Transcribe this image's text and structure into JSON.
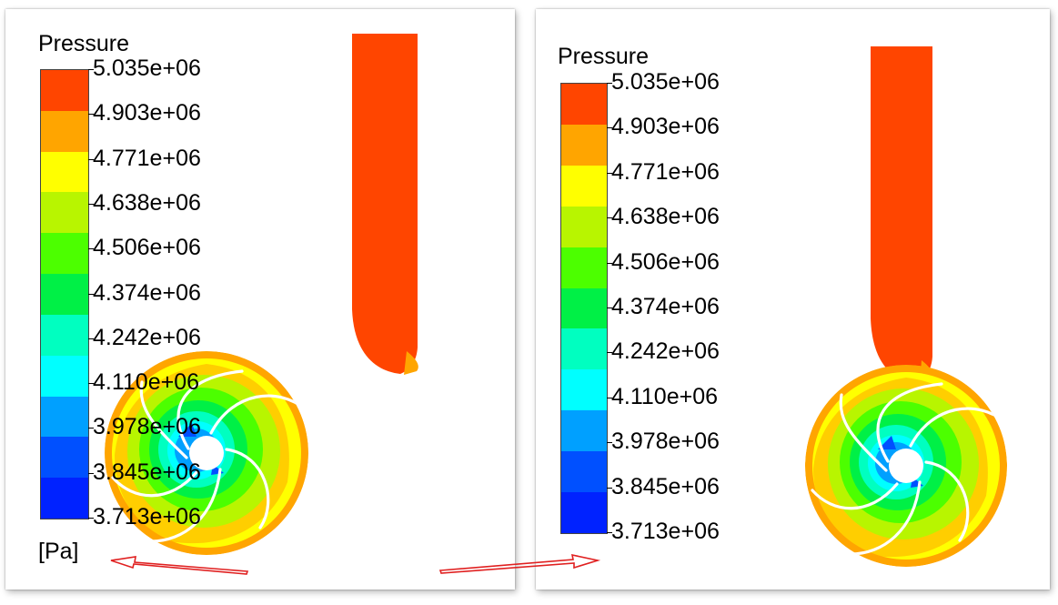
{
  "left_panel": {
    "legend_title": "Pressure",
    "units": "[Pa]",
    "tick_labels": [
      "5.035e+06",
      "4.903e+06",
      "4.771e+06",
      "4.638e+06",
      "4.506e+06",
      "4.374e+06",
      "4.242e+06",
      "4.110e+06",
      "3.978e+06",
      "3.845e+06",
      "3.713e+06"
    ]
  },
  "right_panel": {
    "legend_title": "Pressure",
    "tick_labels": [
      "5.035e+06",
      "4.903e+06",
      "4.771e+06",
      "4.638e+06",
      "4.506e+06",
      "4.374e+06",
      "4.242e+06",
      "4.110e+06",
      "3.978e+06",
      "3.845e+06",
      "3.713e+06"
    ]
  },
  "colormap": [
    "#ff4500",
    "#ffa500",
    "#ffff00",
    "#b8f500",
    "#4cff00",
    "#00f046",
    "#00ffc0",
    "#00ffff",
    "#00a0ff",
    "#0050ff",
    "#0022ff"
  ],
  "arrow_color": "#e02020"
}
